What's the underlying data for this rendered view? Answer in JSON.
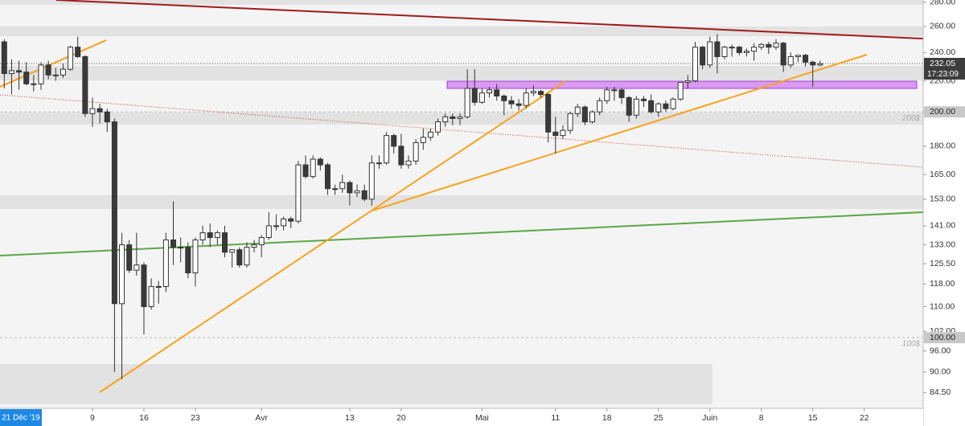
{
  "chart_data": {
    "type": "candlestick",
    "log_scale": true,
    "up_color": "#ffffff",
    "down_color": "#3a3a3a",
    "wick_color": "#333333",
    "crosshair_date": "21 Déc '19",
    "countdown": "17:23:09",
    "price_tags": [
      {
        "value": 232.05,
        "label": "232.05"
      },
      {
        "value": 200,
        "label": "200.00"
      },
      {
        "value": 100,
        "label": "100.00"
      }
    ],
    "level_notes": [
      {
        "value": 200,
        "label": "200$"
      },
      {
        "value": 100,
        "label": "100$"
      }
    ],
    "ylim": [
      80.5,
      282
    ],
    "yticks": [
      {
        "value": 280,
        "label": "280.00"
      },
      {
        "value": 260,
        "label": "260.00"
      },
      {
        "value": 240,
        "label": "240.00"
      },
      {
        "value": 220,
        "label": "220.00"
      },
      {
        "value": 200,
        "label": "200.00"
      },
      {
        "value": 180,
        "label": "180.00"
      },
      {
        "value": 165,
        "label": "165.00"
      },
      {
        "value": 153,
        "label": "153.00"
      },
      {
        "value": 141,
        "label": "141.00"
      },
      {
        "value": 133,
        "label": "133.00"
      },
      {
        "value": 125.5,
        "label": "125.50"
      },
      {
        "value": 118,
        "label": "118.00"
      },
      {
        "value": 110,
        "label": "110.00"
      },
      {
        "value": 102,
        "label": "102.00"
      },
      {
        "value": 96,
        "label": "96.00"
      },
      {
        "value": 90,
        "label": "90.00"
      },
      {
        "value": 84.5,
        "label": "84.50"
      }
    ],
    "categories": [
      null,
      null,
      null,
      null,
      null,
      null,
      null,
      null,
      null,
      null,
      null,
      null,
      "9",
      null,
      null,
      null,
      null,
      null,
      null,
      "16",
      null,
      null,
      null,
      null,
      null,
      null,
      "23",
      null,
      null,
      null,
      null,
      null,
      null,
      null,
      null,
      "Avr",
      null,
      null,
      null,
      null,
      null,
      null,
      null,
      null,
      null,
      null,
      null,
      "13",
      null,
      null,
      null,
      null,
      null,
      null,
      "20",
      null,
      null,
      null,
      null,
      null,
      null,
      null,
      null,
      null,
      null,
      "Mai",
      null,
      null,
      null,
      null,
      null,
      null,
      null,
      null,
      null,
      "11",
      null,
      null,
      null,
      null,
      null,
      null,
      "18",
      null,
      null,
      null,
      null,
      null,
      null,
      "25",
      null,
      null,
      null,
      null,
      null,
      null,
      "Juin",
      null,
      null,
      null,
      null,
      null,
      null,
      "8",
      null,
      null,
      null,
      null,
      null,
      null,
      "15",
      null,
      null,
      null,
      null,
      null,
      null,
      "22",
      null,
      null,
      null,
      null,
      null,
      null,
      null
    ],
    "ohlc": [
      [
        248,
        250,
        215,
        225
      ],
      [
        225,
        235,
        211,
        227
      ],
      [
        227,
        234,
        214,
        226
      ],
      [
        226,
        233,
        217,
        218
      ],
      [
        218,
        224,
        213,
        218
      ],
      [
        218,
        233,
        214,
        231
      ],
      [
        231,
        234,
        221,
        224
      ],
      [
        224,
        229,
        220,
        224
      ],
      [
        224,
        232,
        222,
        228
      ],
      [
        228,
        245,
        227,
        244
      ],
      [
        244,
        252,
        236,
        237
      ],
      [
        237,
        238,
        197,
        199
      ],
      [
        199,
        209,
        191,
        202
      ],
      [
        202,
        205,
        193,
        200
      ],
      [
        200,
        202,
        188,
        194
      ],
      [
        194,
        196,
        90,
        111
      ],
      [
        111,
        138,
        88,
        133
      ],
      [
        133,
        135,
        122,
        123
      ],
      [
        123,
        138,
        121,
        125
      ],
      [
        125,
        126,
        101,
        110
      ],
      [
        110,
        120,
        109,
        117
      ],
      [
        117,
        119,
        111,
        117
      ],
      [
        117,
        138,
        115,
        135
      ],
      [
        135,
        152,
        125,
        132
      ],
      [
        132,
        136,
        126,
        132
      ],
      [
        132,
        134,
        120,
        122
      ],
      [
        122,
        136,
        117,
        135
      ],
      [
        135,
        141,
        133,
        138
      ],
      [
        138,
        142,
        132,
        136
      ],
      [
        136,
        139,
        133,
        138
      ],
      [
        138,
        141,
        128,
        130
      ],
      [
        130,
        131,
        124,
        131
      ],
      [
        131,
        132,
        124,
        125
      ],
      [
        125,
        134,
        124,
        132
      ],
      [
        132,
        135,
        130,
        133
      ],
      [
        133,
        137,
        128,
        136
      ],
      [
        136,
        147,
        135,
        141
      ],
      [
        141,
        146,
        139,
        141
      ],
      [
        141,
        145,
        139,
        144
      ],
      [
        144,
        145,
        140,
        143
      ],
      [
        143,
        172,
        142,
        170
      ],
      [
        170,
        175,
        163,
        164
      ],
      [
        164,
        175,
        163,
        173
      ],
      [
        173,
        174,
        167,
        170
      ],
      [
        170,
        171,
        155,
        158
      ],
      [
        158,
        160,
        155,
        158
      ],
      [
        158,
        165,
        156,
        161
      ],
      [
        161,
        162,
        150,
        156
      ],
      [
        156,
        160,
        154,
        157
      ],
      [
        157,
        160,
        152,
        153
      ],
      [
        153,
        175,
        150,
        171
      ],
      [
        171,
        175,
        168,
        171
      ],
      [
        171,
        188,
        170,
        186
      ],
      [
        186,
        187,
        176,
        180
      ],
      [
        180,
        187,
        168,
        170
      ],
      [
        170,
        175,
        168,
        172
      ],
      [
        172,
        184,
        170,
        182
      ],
      [
        182,
        190,
        178,
        185
      ],
      [
        185,
        190,
        183,
        188
      ],
      [
        188,
        196,
        186,
        194
      ],
      [
        194,
        199,
        191,
        197
      ],
      [
        197,
        199,
        192,
        196
      ],
      [
        196,
        199,
        192,
        197
      ],
      [
        197,
        228,
        196,
        215
      ],
      [
        215,
        228,
        204,
        206
      ],
      [
        206,
        215,
        205,
        212
      ],
      [
        212,
        216,
        209,
        214
      ],
      [
        214,
        218,
        207,
        210
      ],
      [
        210,
        211,
        198,
        207
      ],
      [
        207,
        210,
        202,
        205
      ],
      [
        205,
        208,
        201,
        204
      ],
      [
        204,
        215,
        202,
        212
      ],
      [
        212,
        217,
        210,
        213
      ],
      [
        213,
        214,
        209,
        211
      ],
      [
        211,
        212,
        182,
        188
      ],
      [
        188,
        197,
        176,
        186
      ],
      [
        186,
        192,
        184,
        189
      ],
      [
        189,
        200,
        187,
        199
      ],
      [
        199,
        205,
        197,
        203
      ],
      [
        203,
        204,
        192,
        194
      ],
      [
        194,
        201,
        193,
        200
      ],
      [
        200,
        209,
        198,
        207
      ],
      [
        207,
        216,
        205,
        214
      ],
      [
        214,
        216,
        207,
        214
      ],
      [
        214,
        215,
        205,
        209
      ],
      [
        209,
        210,
        194,
        198
      ],
      [
        198,
        210,
        196,
        208
      ],
      [
        208,
        210,
        203,
        207
      ],
      [
        207,
        211,
        199,
        200
      ],
      [
        200,
        206,
        197,
        205
      ],
      [
        205,
        207,
        200,
        202
      ],
      [
        202,
        209,
        201,
        208
      ],
      [
        208,
        219,
        207,
        219
      ],
      [
        219,
        224,
        215,
        220
      ],
      [
        220,
        248,
        219,
        244
      ],
      [
        244,
        245,
        228,
        231
      ],
      [
        231,
        252,
        229,
        248
      ],
      [
        248,
        254,
        225,
        237
      ],
      [
        237,
        245,
        235,
        244
      ],
      [
        244,
        246,
        237,
        244
      ],
      [
        244,
        245,
        238,
        240
      ],
      [
        240,
        243,
        237,
        241
      ],
      [
        241,
        247,
        234,
        244
      ],
      [
        244,
        247,
        242,
        246
      ],
      [
        246,
        248,
        239,
        244
      ],
      [
        244,
        250,
        242,
        247
      ],
      [
        247,
        248,
        226,
        231
      ],
      [
        231,
        240,
        229,
        237
      ],
      [
        237,
        238,
        233,
        238
      ],
      [
        238,
        239,
        230,
        233
      ],
      [
        233,
        234,
        216,
        231
      ],
      [
        231,
        234,
        230,
        232
      ],
      null,
      null,
      null,
      null,
      null,
      null,
      null,
      null,
      null,
      null,
      null,
      null,
      null
    ]
  }
}
